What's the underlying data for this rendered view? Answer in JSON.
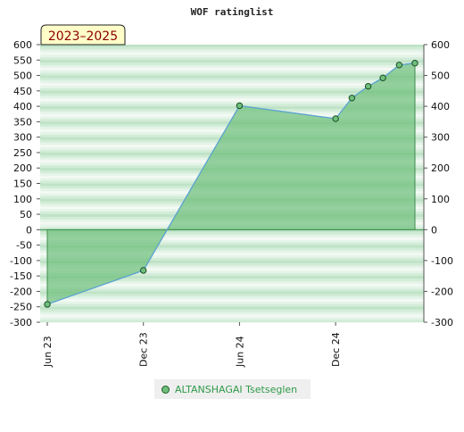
{
  "chart_data": {
    "type": "area",
    "title": "WOF ratinglist",
    "badge": "2023–2025",
    "x_tick_labels": [
      "Jun 23",
      "Dec 23",
      "Jun 24",
      "Dec 24"
    ],
    "y_ticks_left": [
      "600",
      "550",
      "500",
      "450",
      "400",
      "350",
      "300",
      "250",
      "200",
      "150",
      "100",
      "50",
      "0",
      "-50",
      "-100",
      "-150",
      "-200",
      "-250",
      "-300"
    ],
    "y_ticks_right": [
      "600",
      "500",
      "400",
      "300",
      "200",
      "100",
      "0",
      "-100",
      "-200",
      "-300"
    ],
    "ylim": [
      -300,
      600
    ],
    "grid": "horizontal bands",
    "legend_position": "bottom-center",
    "series": [
      {
        "name": "ALTANSHAGAI Tsetseglen",
        "color": "#6fbf7d",
        "line_color": "#5ba3d9",
        "x": [
          "2023-06",
          "2023-12",
          "2024-06",
          "2024-12",
          "2025-01",
          "2025-02",
          "2025-03",
          "2025-04",
          "2025-05"
        ],
        "values": [
          -242,
          -132,
          402,
          360,
          427,
          465,
          492,
          534,
          540
        ]
      }
    ]
  },
  "legend": {
    "label": "ALTANSHAGAI Tsetseglen"
  }
}
